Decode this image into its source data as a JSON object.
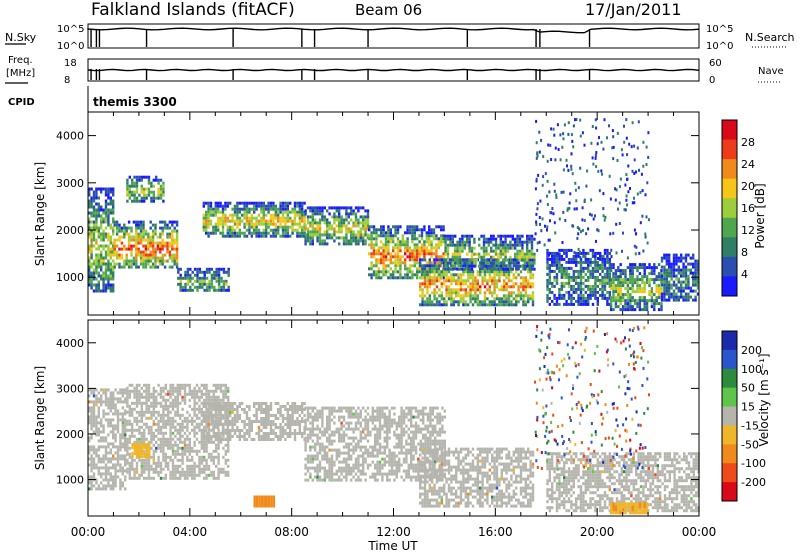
{
  "header": {
    "station": "Falkland Islands (fitACF)",
    "beam": "Beam 06",
    "date": "17/Jan/2011"
  },
  "labels": {
    "nsky": "N.Sky",
    "nsearch": "N.Search",
    "freq": "Freq.",
    "freq_unit": "[MHz]",
    "nave": "Nave",
    "cpid": "CPID",
    "cpid_value": "themis 3300",
    "nsky_ticks": [
      "10^5",
      "10^0"
    ],
    "nsearch_ticks": [
      "10^5",
      "10^0"
    ],
    "freq_ticks": [
      "18",
      "8"
    ],
    "nave_ticks": [
      "60",
      "0"
    ]
  },
  "colors": {
    "power_scale": [
      "#1a1aff",
      "#2a4fb0",
      "#2e7f66",
      "#4fa64f",
      "#9ccd3a",
      "#f5c518",
      "#f08a1a",
      "#ee3b1a",
      "#d9091a"
    ],
    "velocity_scale": [
      "#1a2aaa",
      "#2a55cc",
      "#2e8a3c",
      "#5ec44a",
      "#b5b5ad",
      "#f0b62a",
      "#f08a1a",
      "#ee4a1a",
      "#d9091a"
    ]
  },
  "chart_data": [
    {
      "type": "heatmap",
      "title": "Power",
      "ylabel": "Slant Range [km]",
      "xlabel": "",
      "x_range": [
        "00:00",
        "24:00"
      ],
      "y_range": [
        200,
        4500
      ],
      "x_ticks": [
        "00:00",
        "04:00",
        "08:00",
        "12:00",
        "16:00",
        "20:00",
        "00:00"
      ],
      "y_ticks": [
        "1000",
        "2000",
        "3000",
        "4000"
      ],
      "colorbar": {
        "label": "Power [dB]",
        "ticks": [
          "28",
          "24",
          "20",
          "16",
          "12",
          "8",
          "4"
        ],
        "range": [
          0,
          32
        ]
      },
      "bands": [
        {
          "t0": 0.0,
          "t1": 1.0,
          "r0": 700,
          "r1": 2900,
          "level": 0.55
        },
        {
          "t0": 1.0,
          "t1": 3.5,
          "r0": 1200,
          "r1": 2200,
          "level": 0.85
        },
        {
          "t0": 1.5,
          "t1": 3.0,
          "r0": 2600,
          "r1": 3150,
          "level": 0.5
        },
        {
          "t0": 3.5,
          "t1": 5.5,
          "r0": 700,
          "r1": 1200,
          "level": 0.45
        },
        {
          "t0": 4.5,
          "t1": 8.5,
          "r0": 1900,
          "r1": 2600,
          "level": 0.65
        },
        {
          "t0": 8.5,
          "t1": 11.0,
          "r0": 1700,
          "r1": 2500,
          "level": 0.6
        },
        {
          "t0": 11.0,
          "t1": 14.0,
          "r0": 1000,
          "r1": 2100,
          "level": 0.8
        },
        {
          "t0": 13.0,
          "t1": 17.5,
          "r0": 400,
          "r1": 1400,
          "level": 0.75
        },
        {
          "t0": 14.0,
          "t1": 17.5,
          "r0": 1200,
          "r1": 1900,
          "level": 0.5
        },
        {
          "t0": 18.0,
          "t1": 20.5,
          "r0": 400,
          "r1": 1600,
          "level": 0.35
        },
        {
          "t0": 20.5,
          "t1": 22.5,
          "r0": 300,
          "r1": 1300,
          "level": 0.5
        },
        {
          "t0": 22.5,
          "t1": 24.0,
          "r0": 500,
          "r1": 1500,
          "level": 0.3
        }
      ]
    },
    {
      "type": "heatmap",
      "title": "Velocity",
      "ylabel": "Slant Range [km]",
      "xlabel": "Time UT",
      "x_range": [
        "00:00",
        "24:00"
      ],
      "y_range": [
        200,
        4500
      ],
      "x_ticks": [
        "00:00",
        "04:00",
        "08:00",
        "12:00",
        "16:00",
        "20:00",
        "00:00"
      ],
      "y_ticks": [
        "1000",
        "2000",
        "3000",
        "4000"
      ],
      "colorbar": {
        "label": "Velocity [m s⁻¹]",
        "ticks": [
          "200",
          "100",
          "50",
          "15",
          "-15",
          "-50",
          "-100",
          "-200"
        ],
        "range": [
          -250,
          250
        ]
      },
      "bands": [
        {
          "t0": 0.0,
          "t1": 1.5,
          "r0": 800,
          "r1": 3000,
          "vel": 0
        },
        {
          "t0": 1.5,
          "t1": 5.5,
          "r0": 1000,
          "r1": 3100,
          "vel": 0
        },
        {
          "t0": 4.5,
          "t1": 8.5,
          "r0": 1900,
          "r1": 2700,
          "vel": 0
        },
        {
          "t0": 8.5,
          "t1": 14.0,
          "r0": 1000,
          "r1": 2600,
          "vel": 0
        },
        {
          "t0": 13.0,
          "t1": 17.5,
          "r0": 400,
          "r1": 1700,
          "vel": 0
        },
        {
          "t0": 18.0,
          "t1": 24.0,
          "r0": 300,
          "r1": 1600,
          "vel": 0
        },
        {
          "t0": 6.5,
          "t1": 7.3,
          "r0": 450,
          "r1": 650,
          "vel": -80
        },
        {
          "t0": 20.5,
          "t1": 22.0,
          "r0": 300,
          "r1": 500,
          "vel": -45
        },
        {
          "t0": 1.7,
          "t1": 2.4,
          "r0": 1500,
          "r1": 1800,
          "vel": -40
        }
      ]
    }
  ]
}
